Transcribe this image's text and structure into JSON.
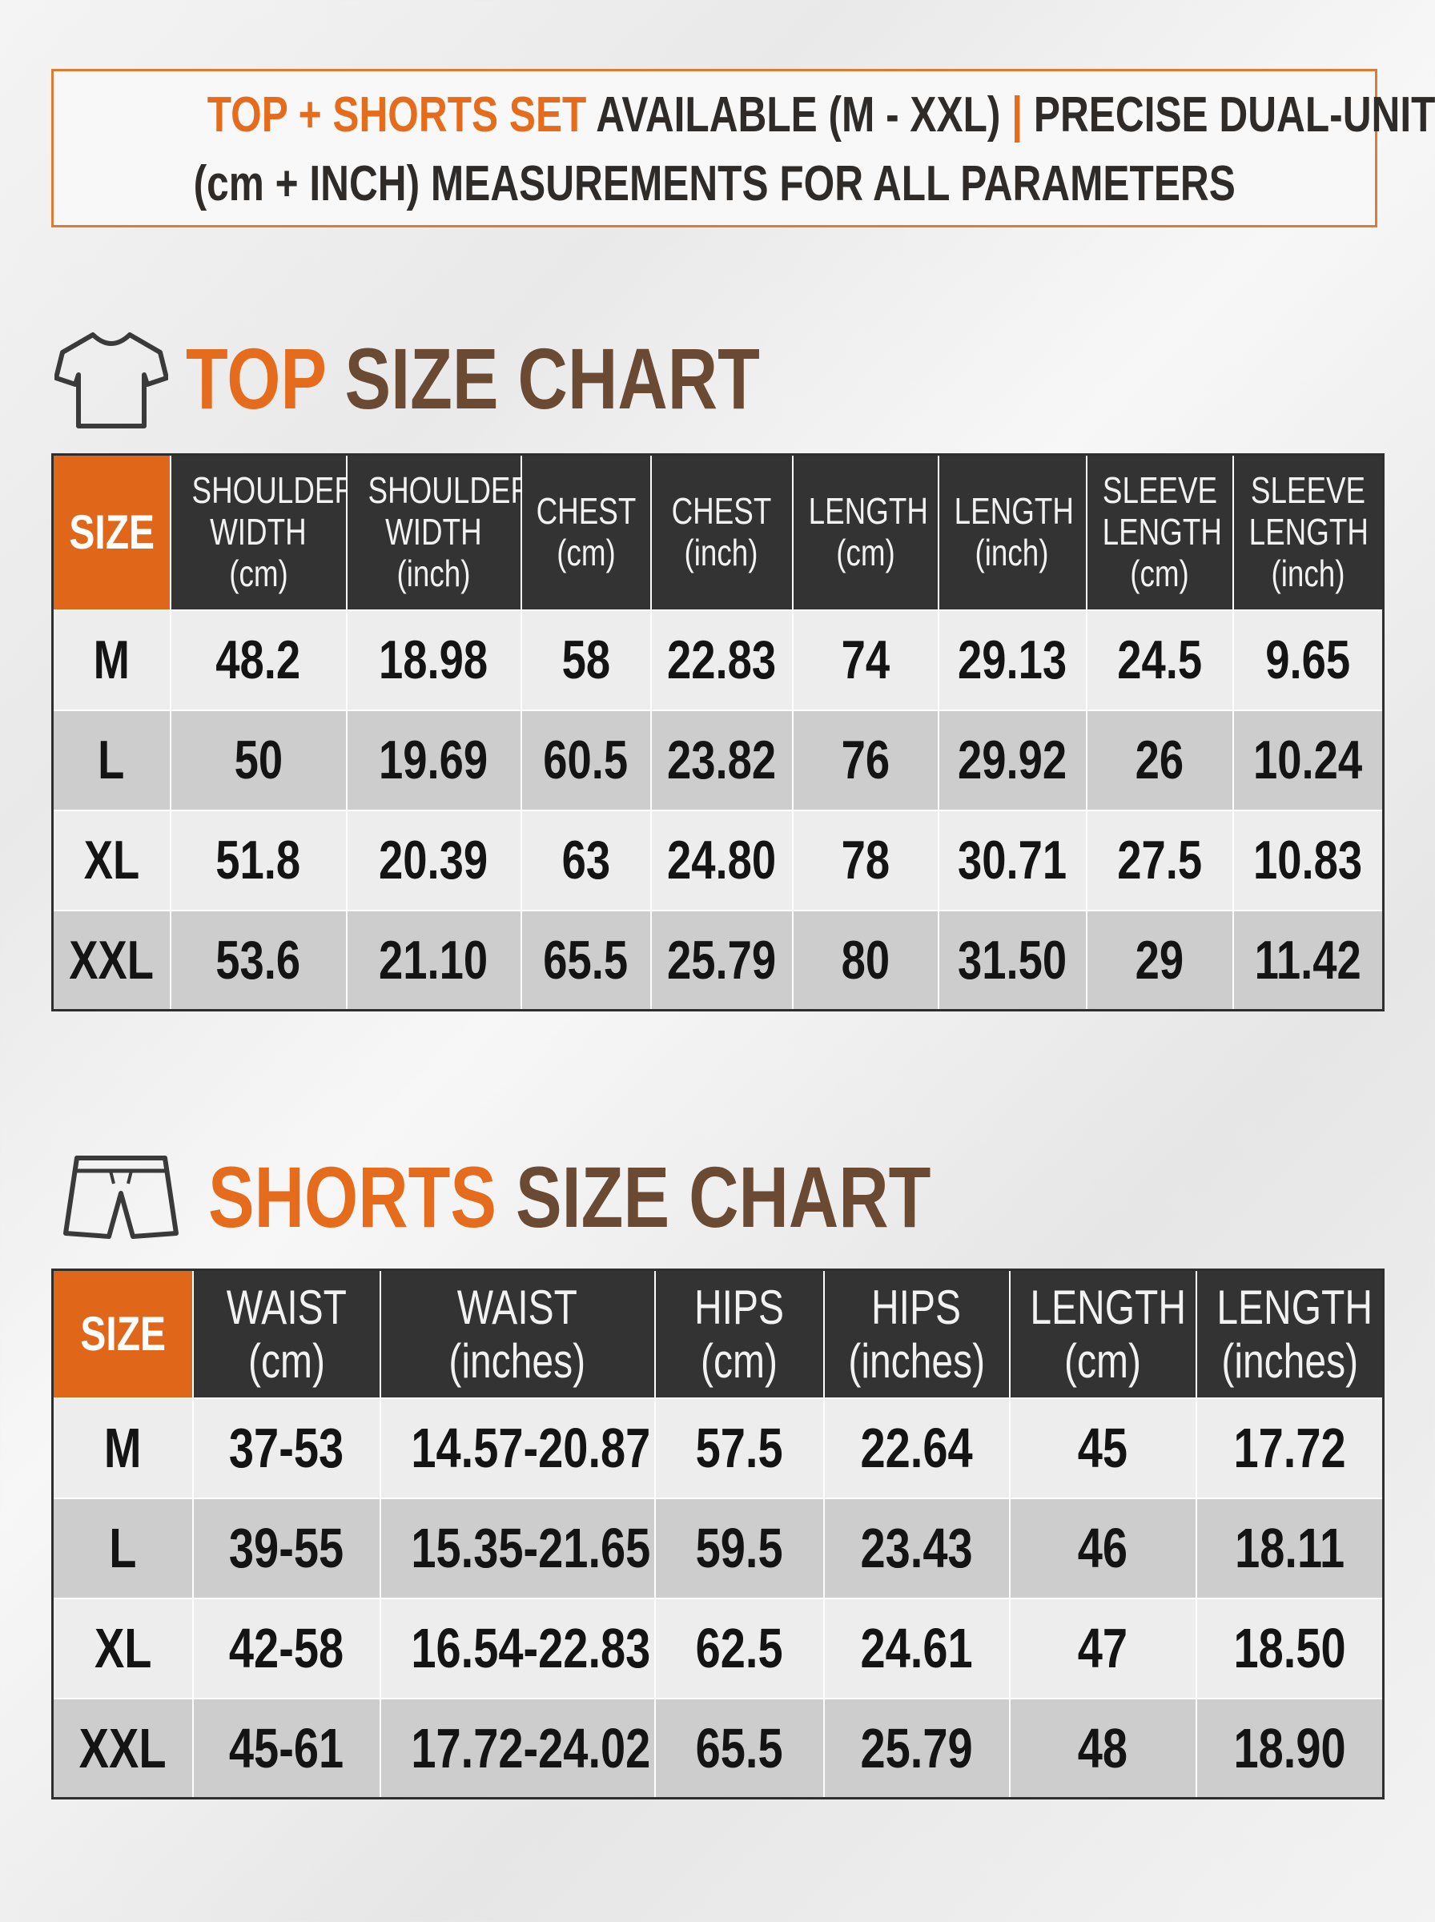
{
  "header": {
    "highlight": "TOP + SHORTS SET",
    "text": "AVAILABLE (M - XXL)",
    "separator": "|",
    "text_end": "PRECISE DUAL-UNIT",
    "line2": "(cm + INCH) MEASUREMENTS FOR ALL PARAMETERS"
  },
  "top": {
    "title_highlight": "TOP",
    "title": "SIZE CHART",
    "columns": [
      [
        "SIZE"
      ],
      [
        "SHOULDER",
        "WIDTH",
        "(cm)"
      ],
      [
        "SHOULDER",
        "WIDTH",
        "(inch)"
      ],
      [
        "CHEST",
        "(cm)"
      ],
      [
        "CHEST",
        "(inch)"
      ],
      [
        "LENGTH",
        "(cm)"
      ],
      [
        "LENGTH",
        "(inch)"
      ],
      [
        "SLEEVE",
        "LENGTH",
        "(cm)"
      ],
      [
        "SLEEVE",
        "LENGTH",
        "(inch)"
      ]
    ],
    "rows": [
      [
        "M",
        "48.2",
        "18.98",
        "58",
        "22.83",
        "74",
        "29.13",
        "24.5",
        "9.65"
      ],
      [
        "L",
        "50",
        "19.69",
        "60.5",
        "23.82",
        "76",
        "29.92",
        "26",
        "10.24"
      ],
      [
        "XL",
        "51.8",
        "20.39",
        "63",
        "24.80",
        "78",
        "30.71",
        "27.5",
        "10.83"
      ],
      [
        "XXL",
        "53.6",
        "21.10",
        "65.5",
        "25.79",
        "80",
        "31.50",
        "29",
        "11.42"
      ]
    ]
  },
  "shorts": {
    "title_highlight": "SHORTS",
    "title": "SIZE CHART",
    "columns": [
      [
        "SIZE"
      ],
      [
        "WAIST",
        "(cm)"
      ],
      [
        "WAIST",
        "(inches)"
      ],
      [
        "HIPS",
        "(cm)"
      ],
      [
        "HIPS",
        "(inches)"
      ],
      [
        "LENGTH",
        "(cm)"
      ],
      [
        "LENGTH",
        "(inches)"
      ]
    ],
    "rows": [
      [
        "M",
        "37-53",
        "14.57-20.87",
        "57.5",
        "22.64",
        "45",
        "17.72"
      ],
      [
        "L",
        "39-55",
        "15.35-21.65",
        "59.5",
        "23.43",
        "46",
        "18.11"
      ],
      [
        "XL",
        "42-58",
        "16.54-22.83",
        "62.5",
        "24.61",
        "47",
        "18.50"
      ],
      [
        "XXL",
        "45-61",
        "17.72-24.02",
        "65.5",
        "25.79",
        "48",
        "18.90"
      ]
    ]
  }
}
